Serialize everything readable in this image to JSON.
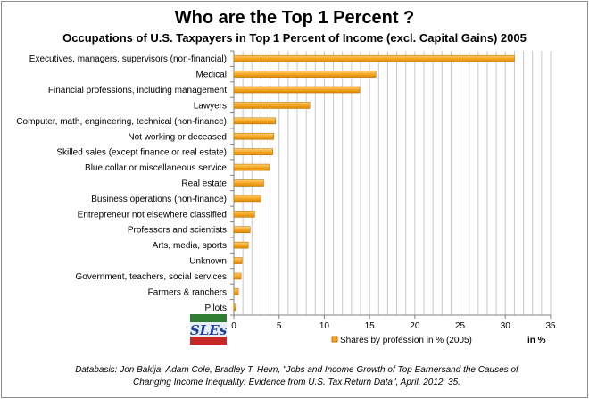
{
  "chart_data": {
    "type": "bar",
    "orientation": "horizontal",
    "title": "Who are the Top 1 Percent ?",
    "subtitle": "Occupations of  U.S. Taxpayers in Top 1 Percent  of Income (excl. Capital Gains) 2005",
    "categories": [
      "Executives, managers, supervisors (non-financial)",
      "Medical",
      "Financial professions, including management",
      "Lawyers",
      "Computer, math, engineering, technical (non-finance)",
      "Not working or deceased",
      "Skilled sales (except finance or real estate)",
      "Blue collar or miscellaneous service",
      "Real estate",
      "Business operations (non-finance)",
      "Entrepreneur not elsewhere classified",
      "Professors and scientists",
      "Arts, media, sports",
      "Unknown",
      "Government, teachers, social services",
      "Farmers & ranchers",
      "Pilots"
    ],
    "series": [
      {
        "name": "Shares by profession in % (2005)",
        "values": [
          31.0,
          15.7,
          13.9,
          8.4,
          4.6,
          4.4,
          4.3,
          3.9,
          3.3,
          3.0,
          2.3,
          1.8,
          1.6,
          0.9,
          0.8,
          0.5,
          0.2
        ]
      }
    ],
    "xlabel": "in %",
    "xlim": [
      0,
      35
    ],
    "xticks": [
      0,
      5,
      10,
      15,
      20,
      25,
      30,
      35
    ],
    "grid": true,
    "legend": "bottom",
    "bar_color": "#f5a623",
    "bar_color_dark": "#c27400"
  },
  "logo": {
    "text": "SLEs"
  },
  "source_note": {
    "line1": "Databasis:  Jon Bakija, Adam Cole,  Bradley T. Heim, \"Jobs and Income Growth of Top Earnersand the Causes of",
    "line2": "Changing Income Inequality: Evidence from U.S. Tax Return Data\", April, 2012,  35."
  }
}
